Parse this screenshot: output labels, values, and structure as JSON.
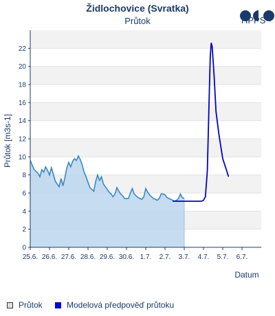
{
  "header": {
    "title": "Židlochovice (Svratka)",
    "subtitle": "Průtok",
    "logo_text": "HPPS"
  },
  "legend": {
    "observed_label": "Průtok",
    "forecast_label": "Modelová předpověď průtoku"
  },
  "chart_data": {
    "type": "line",
    "title": "Židlochovice (Svratka)",
    "subtitle": "Průtok",
    "xlabel": "Datum",
    "ylabel": "Průtok [m3s-1]",
    "ylim": [
      0,
      24
    ],
    "yticks": [
      "0",
      "2",
      "4",
      "6",
      "8",
      "10",
      "12",
      "14",
      "16",
      "18",
      "20",
      "22"
    ],
    "xlim": [
      0,
      12
    ],
    "xticks": [
      "25.6.",
      "26.6.",
      "27.6.",
      "28.6.",
      "29.6.",
      "30.6.",
      "1.7.",
      "2.7.",
      "3.7.",
      "4.7.",
      "5.7.",
      "6.7."
    ],
    "grid": "horizontal bands",
    "colors": {
      "observed_line": "#3a88c0",
      "observed_fill": "#bcd6ef",
      "forecast": "#0000cc",
      "band": "#f2f2f2"
    },
    "series": [
      {
        "name": "Průtok",
        "x": [
          0,
          0.1,
          0.2,
          0.3,
          0.4,
          0.5,
          0.6,
          0.7,
          0.8,
          0.9,
          1.0,
          1.1,
          1.2,
          1.3,
          1.4,
          1.5,
          1.6,
          1.7,
          1.8,
          1.9,
          2.0,
          2.1,
          2.2,
          2.3,
          2.4,
          2.5,
          2.6,
          2.7,
          2.8,
          2.9,
          3.0,
          3.1,
          3.2,
          3.3,
          3.4,
          3.5,
          3.6,
          3.7,
          3.8,
          3.9,
          4.0,
          4.1,
          4.2,
          4.3,
          4.4,
          4.5,
          4.6,
          4.7,
          4.8,
          4.9,
          5.0,
          5.1,
          5.2,
          5.3,
          5.4,
          5.5,
          5.6,
          5.7,
          5.8,
          5.9,
          6.0,
          6.1,
          6.2,
          6.3,
          6.4,
          6.5,
          6.6,
          6.7,
          6.8,
          6.9,
          7.0,
          7.1,
          7.2,
          7.3,
          7.4,
          7.5,
          7.6,
          7.7,
          7.8,
          7.9,
          8.0
        ],
        "y": [
          9.6,
          9.1,
          8.6,
          8.4,
          8.2,
          7.8,
          8.6,
          8.3,
          8.9,
          8.5,
          8.0,
          8.8,
          8.1,
          7.3,
          7.0,
          6.7,
          7.6,
          6.8,
          7.7,
          8.8,
          9.4,
          8.9,
          9.5,
          9.8,
          9.6,
          10.1,
          9.7,
          9.1,
          8.3,
          7.8,
          7.2,
          6.6,
          6.4,
          6.2,
          7.3,
          8.0,
          7.4,
          7.8,
          7.0,
          6.7,
          6.4,
          6.1,
          5.9,
          5.6,
          5.9,
          6.6,
          6.2,
          5.9,
          5.7,
          5.4,
          5.4,
          5.4,
          6.0,
          6.5,
          5.9,
          5.7,
          5.5,
          5.4,
          5.3,
          5.6,
          6.5,
          6.1,
          5.8,
          5.6,
          5.4,
          5.3,
          5.2,
          5.4,
          5.9,
          5.9,
          5.8,
          5.5,
          5.4,
          5.3,
          5.2,
          5.1,
          5.2,
          5.4,
          5.9,
          5.5,
          5.4
        ]
      },
      {
        "name": "Modelová předpověď průtoku",
        "x": [
          7.4,
          7.8,
          8.2,
          8.6,
          8.9,
          9.0,
          9.1,
          9.2,
          9.3,
          9.35,
          9.4,
          9.45,
          9.55,
          9.65,
          9.8,
          10.0,
          10.2,
          10.3
        ],
        "y": [
          5.1,
          5.1,
          5.1,
          5.1,
          5.1,
          5.2,
          5.6,
          8.5,
          17.0,
          21.0,
          22.6,
          22.2,
          19.0,
          15.0,
          12.5,
          9.8,
          8.5,
          7.8
        ]
      }
    ]
  }
}
